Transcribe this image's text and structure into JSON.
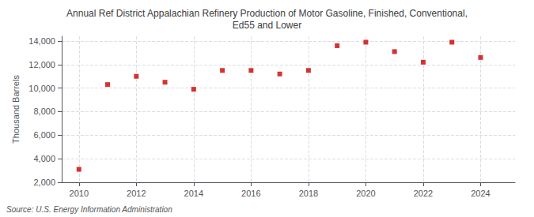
{
  "chart_data": {
    "type": "scatter",
    "title": "Annual Ref District Appalachian Refinery Production of Motor Gasoline, Finished, Conventional,\nEd55 and Lower",
    "ylabel": "Thousand Barrels",
    "source": "Source: U.S. Energy Information Administration",
    "x": [
      2010,
      2011,
      2012,
      2013,
      2014,
      2015,
      2016,
      2017,
      2018,
      2019,
      2020,
      2021,
      2022,
      2023,
      2024
    ],
    "values": [
      3100,
      10300,
      11000,
      10500,
      9900,
      11500,
      11500,
      11200,
      11500,
      13600,
      13900,
      13100,
      12200,
      13900,
      12600
    ],
    "color": "#cc0000",
    "marker": "square",
    "xlim": [
      2009.4,
      2025.2
    ],
    "xticks": [
      2010,
      2012,
      2014,
      2016,
      2018,
      2020,
      2022,
      2024
    ],
    "ylim": [
      2000,
      14400
    ],
    "yticks": [
      {
        "value": 2000,
        "label": "2,000"
      },
      {
        "value": 4000,
        "label": "4,000"
      },
      {
        "value": 6000,
        "label": "6,000"
      },
      {
        "value": 8000,
        "label": "8,000"
      },
      {
        "value": 10000,
        "label": "10,000"
      },
      {
        "value": 12000,
        "label": "12,000"
      },
      {
        "value": 14000,
        "label": "14,000"
      }
    ],
    "grid": true
  }
}
